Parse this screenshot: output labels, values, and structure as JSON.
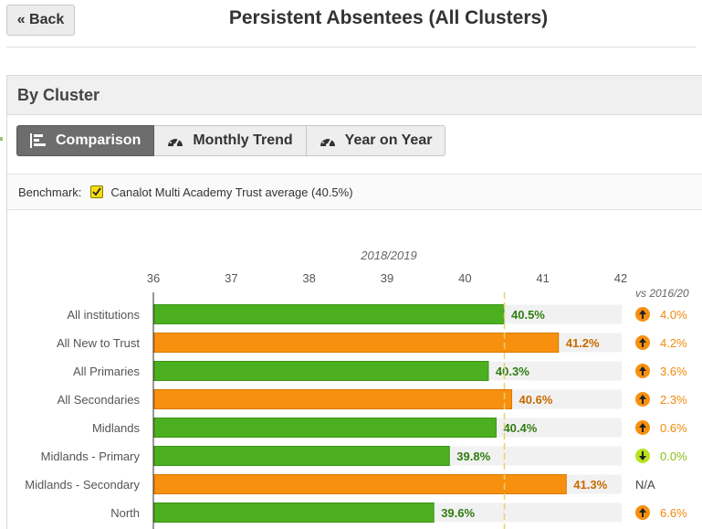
{
  "back_label": "« Back",
  "page_title": "Persistent Absentees (All Clusters)",
  "section_title": "By Cluster",
  "tabs": [
    {
      "label": "Comparison",
      "icon": "bar-chart-icon",
      "active": true
    },
    {
      "label": "Monthly Trend",
      "icon": "gauge-icon",
      "active": false
    },
    {
      "label": "Year on Year",
      "icon": "gauge-icon",
      "active": false
    }
  ],
  "benchmark": {
    "label": "Benchmark:",
    "checked": true,
    "text": "Canalot Multi Academy Trust average (40.5%)"
  },
  "colors": {
    "below_benchmark": "#4caf1f",
    "above_benchmark": "#f7900f",
    "benchmark_line": "#e6d26a",
    "up_arrow": "#f7900f",
    "down_arrow": "#b9e31e"
  },
  "chart_data": {
    "type": "bar",
    "orientation": "horizontal",
    "title": "2018/2019",
    "xlim": [
      36,
      42
    ],
    "ticks": [
      "36",
      "37",
      "38",
      "39",
      "40",
      "41",
      "42"
    ],
    "benchmark": 40.5,
    "comparison_header": "vs 2016/20",
    "categories": [
      "All institutions",
      "All New to Trust",
      "All Primaries",
      "All Secondaries",
      "Midlands",
      "Midlands - Primary",
      "Midlands - Secondary",
      "North"
    ],
    "values": [
      40.5,
      41.2,
      40.3,
      40.6,
      40.4,
      39.8,
      41.3,
      39.6
    ],
    "labels": [
      "40.5%",
      "41.2%",
      "40.3%",
      "40.6%",
      "40.4%",
      "39.8%",
      "41.3%",
      "39.6%"
    ],
    "changes": [
      {
        "direction": "up",
        "text": "4.0%"
      },
      {
        "direction": "up",
        "text": "4.2%"
      },
      {
        "direction": "up",
        "text": "3.6%"
      },
      {
        "direction": "up",
        "text": "2.3%"
      },
      {
        "direction": "up",
        "text": "0.6%"
      },
      {
        "direction": "down",
        "text": "0.0%"
      },
      {
        "direction": "none",
        "text": "N/A"
      },
      {
        "direction": "up",
        "text": "6.6%"
      }
    ]
  }
}
